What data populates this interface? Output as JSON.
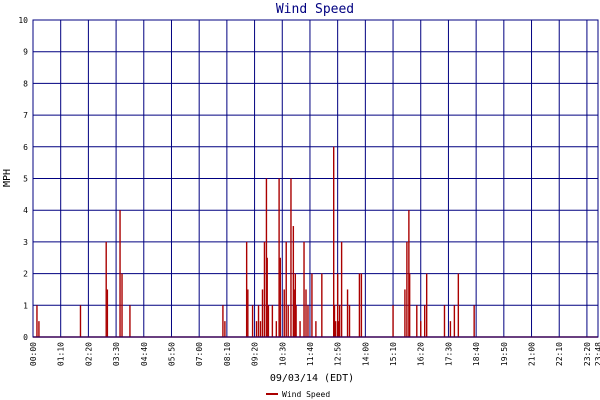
{
  "chart_data": {
    "type": "bar",
    "title": "Wind Speed",
    "xlabel": "09/03/14 (EDT)",
    "ylabel": "MPH",
    "ylim": [
      0,
      10
    ],
    "yticks": [
      "0",
      "1",
      "2",
      "3",
      "4",
      "5",
      "6",
      "7",
      "8",
      "9",
      "10"
    ],
    "xticks": [
      "00:00",
      "01:10",
      "02:20",
      "03:30",
      "04:40",
      "05:50",
      "07:00",
      "08:10",
      "09:20",
      "10:30",
      "11:40",
      "12:50",
      "14:00",
      "15:10",
      "16:20",
      "17:30",
      "18:40",
      "19:50",
      "21:00",
      "22:10",
      "23:20",
      "23:48"
    ],
    "grid": true,
    "legend_position": "bottom-center",
    "series": [
      {
        "name": "Wind Speed",
        "color": "#aa0000",
        "x": [
          "00:10",
          "00:15",
          "02:00",
          "03:05",
          "03:08",
          "03:40",
          "03:45",
          "04:05",
          "08:00",
          "08:05",
          "09:00",
          "09:03",
          "09:15",
          "09:25",
          "09:30",
          "09:35",
          "09:40",
          "09:45",
          "09:50",
          "09:52",
          "09:55",
          "10:05",
          "10:15",
          "10:22",
          "10:25",
          "10:35",
          "10:40",
          "10:45",
          "10:52",
          "10:58",
          "11:00",
          "11:03",
          "11:05",
          "11:15",
          "11:25",
          "11:30",
          "11:35",
          "11:45",
          "11:55",
          "12:10",
          "12:40",
          "12:42",
          "12:45",
          "12:50",
          "12:52",
          "12:55",
          "13:00",
          "13:15",
          "13:20",
          "13:45",
          "13:50",
          "15:10",
          "15:40",
          "15:45",
          "15:50",
          "15:52",
          "16:10",
          "16:20",
          "16:30",
          "16:35",
          "17:20",
          "17:35",
          "17:45",
          "17:55",
          "18:35"
        ],
        "values": [
          1.0,
          0.5,
          1.0,
          3.0,
          1.5,
          4.0,
          2.0,
          1.0,
          1.0,
          0.5,
          3.0,
          1.5,
          1.0,
          0.5,
          1.0,
          0.5,
          1.5,
          3.0,
          5.0,
          2.5,
          1.0,
          1.0,
          0.5,
          5.0,
          2.5,
          1.5,
          3.0,
          1.0,
          5.0,
          3.5,
          1.5,
          2.0,
          1.0,
          0.5,
          3.0,
          1.5,
          1.0,
          2.0,
          0.5,
          2.0,
          6.0,
          1.0,
          0.5,
          2.0,
          0.5,
          1.0,
          3.0,
          1.5,
          1.0,
          2.0,
          2.0,
          1.0,
          1.5,
          3.0,
          4.0,
          2.0,
          1.0,
          0.5,
          1.0,
          2.0,
          1.0,
          0.5,
          1.0,
          2.0,
          1.0
        ]
      }
    ]
  }
}
